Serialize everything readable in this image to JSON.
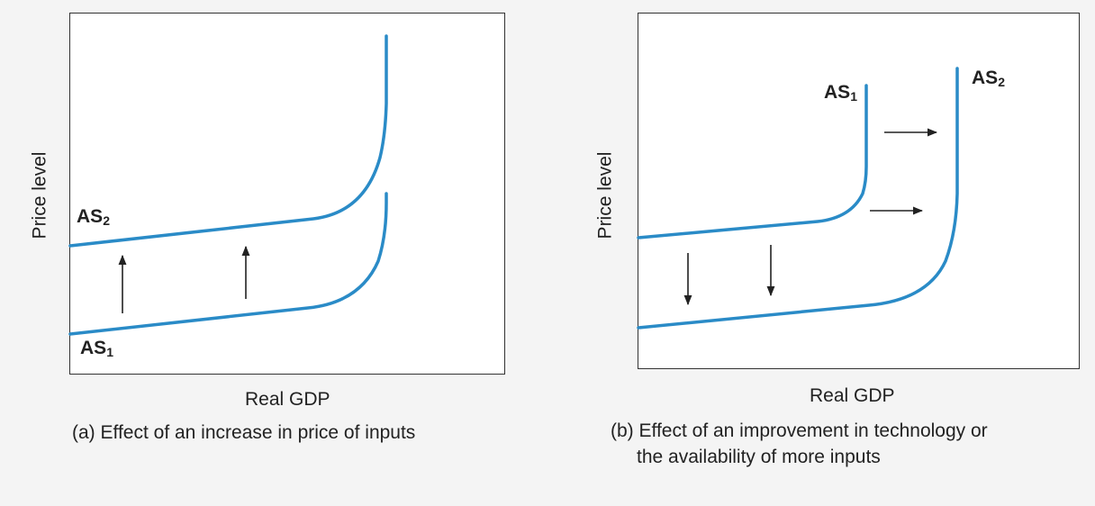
{
  "panel_a": {
    "ylabel": "Price level",
    "xlabel": "Real GDP",
    "caption": "(a) Effect of an increase in price of inputs",
    "curve_upper": {
      "name": "AS",
      "sub": "2"
    },
    "curve_lower": {
      "name": "AS",
      "sub": "1"
    },
    "shift_direction": "up"
  },
  "panel_b": {
    "ylabel": "Price level",
    "xlabel": "Real GDP",
    "caption_line1": "(b) Effect of an improvement in technology or",
    "caption_line2": "the availability of more inputs",
    "curve_left": {
      "name": "AS",
      "sub": "1"
    },
    "curve_right": {
      "name": "AS",
      "sub": "2"
    },
    "shift_direction": "down-right"
  },
  "colors": {
    "curve": "#2a8bc7",
    "arrow": "#222222",
    "frame": "#333333",
    "background": "#f4f4f4"
  }
}
